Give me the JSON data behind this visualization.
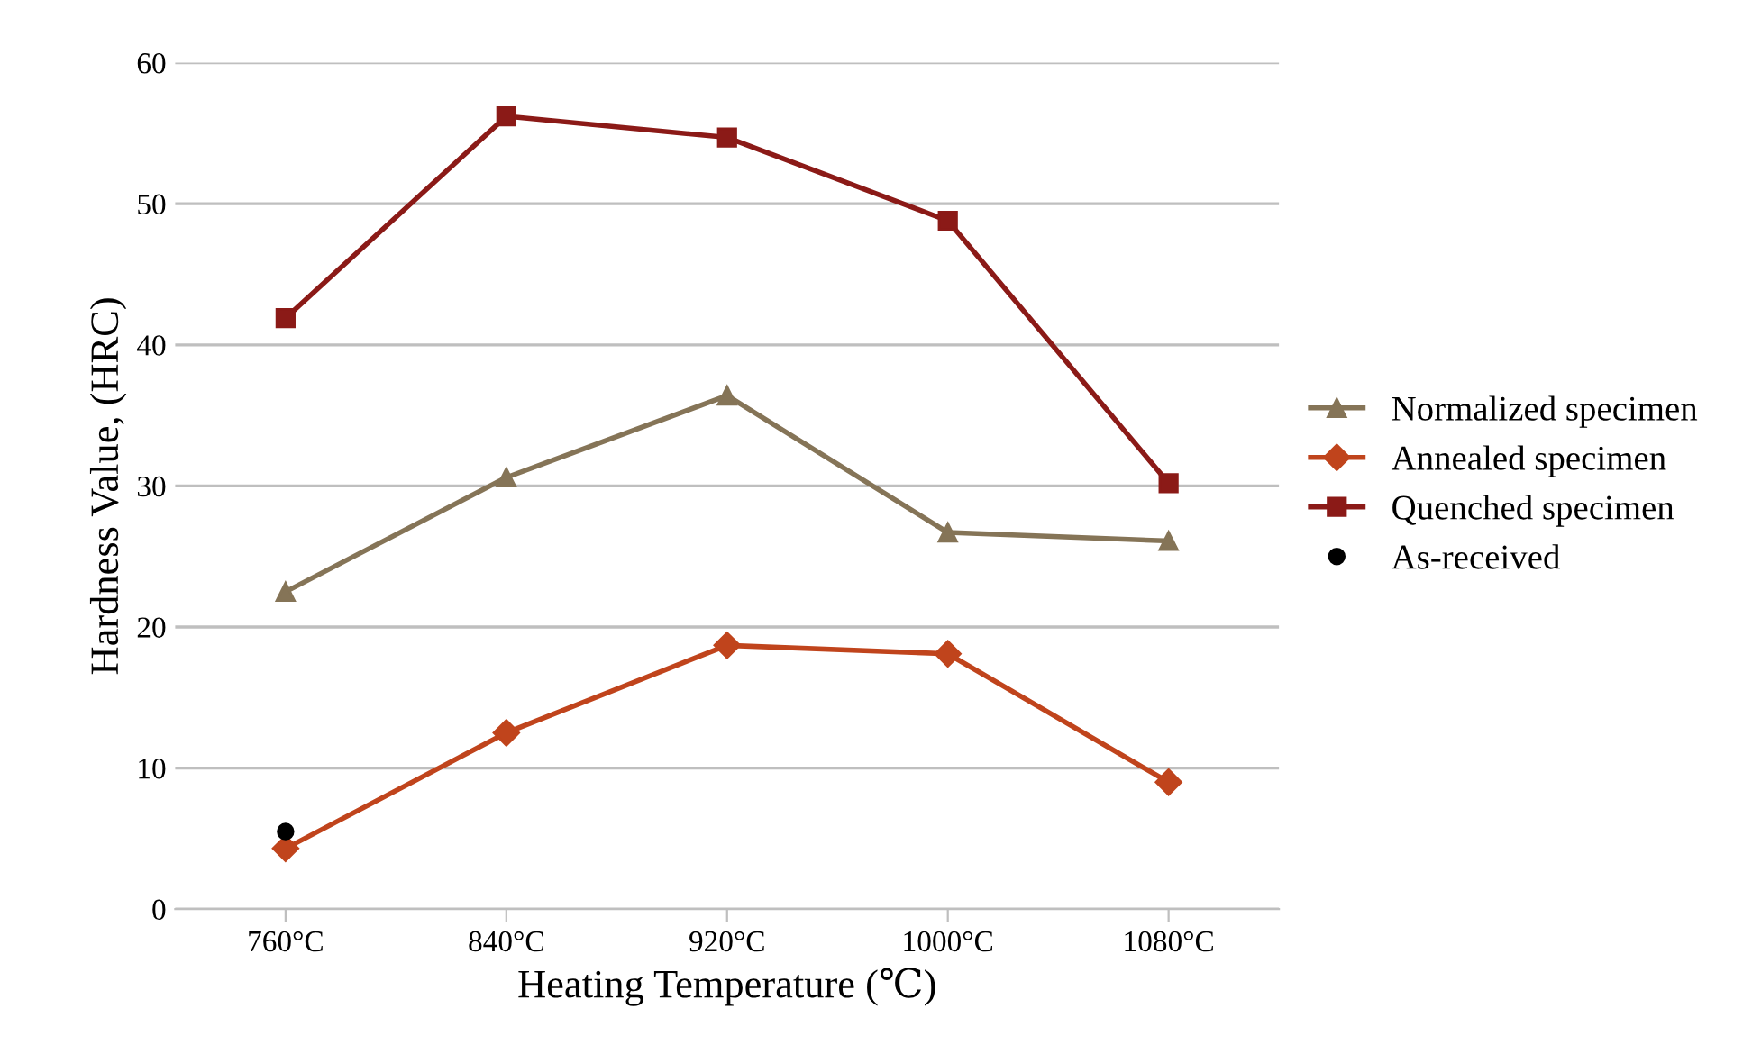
{
  "chart_data": {
    "type": "line",
    "xlabel": "Heating Temperature (℃)",
    "ylabel": "Hardness Value, (HRC)",
    "categories": [
      "760°C",
      "840°C",
      "920°C",
      "1000°C",
      "1080°C"
    ],
    "series": [
      {
        "name": "Normalized specimen",
        "color": "#857457",
        "marker": "triangle",
        "values": [
          22.5,
          30.6,
          36.4,
          26.7,
          26.1
        ]
      },
      {
        "name": "Annealed specimen",
        "color": "#c0441c",
        "marker": "diamond",
        "values": [
          4.3,
          12.5,
          18.7,
          18.1,
          9.0
        ]
      },
      {
        "name": "Quenched specimen",
        "color": "#8b1a17",
        "marker": "square",
        "values": [
          41.9,
          56.2,
          54.7,
          48.8,
          30.2
        ]
      },
      {
        "name": "As-received",
        "color": "#000000",
        "type": "scatter",
        "marker": "circle",
        "x": [
          "760°C"
        ],
        "values": [
          5.5
        ]
      }
    ],
    "ylim": [
      0,
      60
    ],
    "yticks": [
      0,
      10,
      20,
      30,
      40,
      50,
      60
    ],
    "grid": "y",
    "legend": "right"
  }
}
